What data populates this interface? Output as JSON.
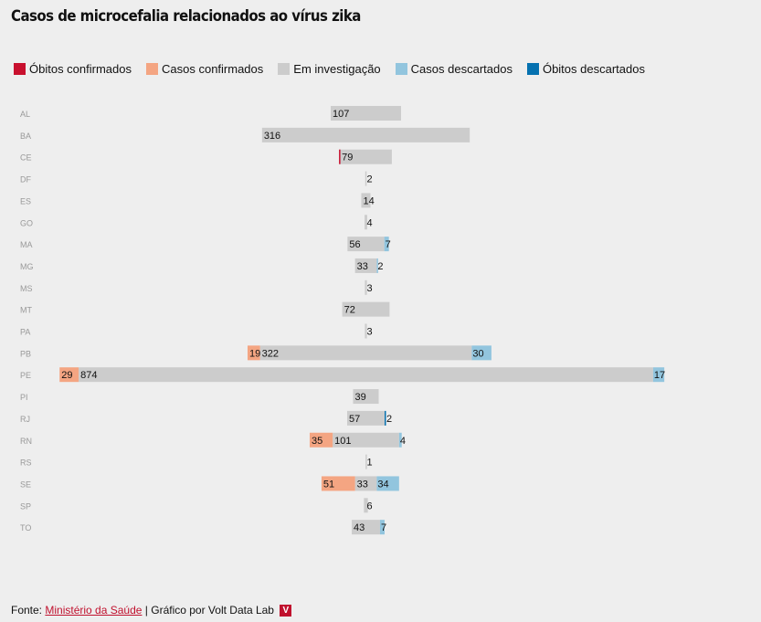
{
  "title": "Casos de microcefalia relacionados ao vírus zika",
  "legend": [
    {
      "label": "Óbitos confirmados",
      "color": "#c8102e"
    },
    {
      "label": "Casos confirmados",
      "color": "#f4a582"
    },
    {
      "label": "Em investigação",
      "color": "#cccccc"
    },
    {
      "label": "Casos descartados",
      "color": "#92c5de"
    },
    {
      "label": "Óbitos descartados",
      "color": "#0571b0"
    }
  ],
  "footer": {
    "prefix": "Fonte:",
    "source_link": "Ministério da Saúde",
    "suffix": "| Gráfico por Volt Data Lab",
    "brand_mark": "V"
  },
  "chart_data": {
    "type": "bar",
    "orientation": "horizontal-diverging",
    "categories": [
      "AL",
      "BA",
      "CE",
      "DF",
      "ES",
      "GO",
      "MA",
      "MG",
      "MS",
      "MT",
      "PA",
      "PB",
      "PE",
      "PI",
      "RJ",
      "RN",
      "RS",
      "SE",
      "SP",
      "TO"
    ],
    "series": [
      {
        "name": "Óbitos confirmados",
        "side": "left",
        "values": [
          0,
          0,
          1,
          0,
          0,
          0,
          0,
          0,
          0,
          0,
          0,
          0,
          0,
          0,
          0,
          0,
          0,
          0,
          0,
          0
        ]
      },
      {
        "name": "Casos confirmados",
        "side": "left",
        "values": [
          0,
          0,
          0,
          0,
          0,
          0,
          0,
          0,
          0,
          0,
          0,
          19,
          29,
          0,
          0,
          35,
          0,
          51,
          0,
          0
        ]
      },
      {
        "name": "Em investigação",
        "side": "center",
        "values": [
          107,
          316,
          79,
          2,
          14,
          4,
          56,
          33,
          3,
          72,
          3,
          322,
          874,
          39,
          57,
          101,
          1,
          33,
          6,
          43
        ]
      },
      {
        "name": "Casos descartados",
        "side": "right",
        "values": [
          0,
          0,
          0,
          0,
          0,
          0,
          7,
          2,
          0,
          0,
          0,
          30,
          17,
          0,
          0,
          4,
          0,
          34,
          0,
          7
        ]
      },
      {
        "name": "Óbitos descartados",
        "side": "right",
        "values": [
          0,
          0,
          0,
          0,
          0,
          0,
          0,
          0,
          0,
          0,
          0,
          0,
          0,
          0,
          2,
          0,
          0,
          0,
          0,
          0
        ]
      }
    ],
    "labels_shown": {
      "Casos confirmados": [
        null,
        null,
        null,
        null,
        null,
        null,
        null,
        null,
        null,
        null,
        null,
        "19",
        "29",
        null,
        null,
        "35",
        null,
        "51",
        null,
        null
      ],
      "Em investigação": [
        "107",
        "316",
        "79",
        "2",
        "14",
        "4",
        "56",
        "33",
        "3",
        "72",
        "3",
        "322",
        "874",
        "39",
        "57",
        "101",
        "1",
        "33",
        "6",
        "43"
      ],
      "Casos descartados": [
        null,
        null,
        null,
        null,
        null,
        null,
        "7",
        "2",
        null,
        null,
        null,
        "30",
        "17",
        null,
        null,
        "4",
        null,
        "34",
        null,
        "7"
      ],
      "Óbitos descartados": [
        null,
        null,
        null,
        null,
        null,
        null,
        null,
        null,
        null,
        null,
        null,
        null,
        null,
        null,
        "2",
        null,
        null,
        null,
        null,
        null
      ]
    }
  }
}
